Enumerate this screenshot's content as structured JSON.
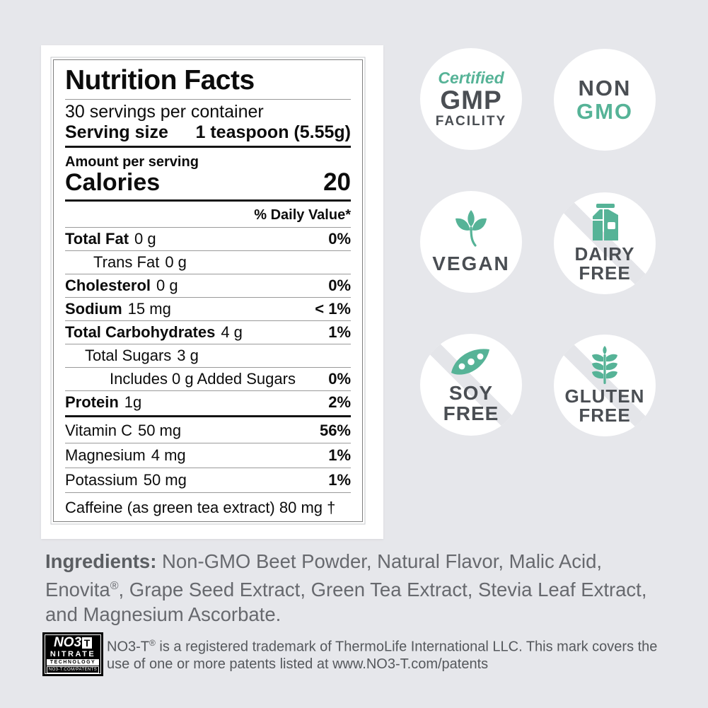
{
  "colors": {
    "background": "#e6e7eb",
    "teal_accent": "#56b397",
    "badge_text_gray": "#4a4e53",
    "body_text_gray": "#67696e",
    "trademark_gray": "#55585c"
  },
  "nutrition": {
    "title": "Nutrition Facts",
    "servings_line": "30 servings per container",
    "serving_size_label": "Serving size",
    "serving_size_value": "1 teaspoon (5.55g)",
    "amount_per_serving": "Amount per serving",
    "calories_label": "Calories",
    "calories_value": "20",
    "daily_value_header": "% Daily Value*",
    "rows": [
      {
        "name": "Total Fat",
        "amount": "0 g",
        "dv": "0%",
        "bold": true,
        "indent": 0
      },
      {
        "name": "Trans Fat",
        "amount": "0 g",
        "dv": "",
        "bold": false,
        "indent": 1
      },
      {
        "name": "Cholesterol",
        "amount": "0 g",
        "dv": "0%",
        "bold": true,
        "indent": 0
      },
      {
        "name": "Sodium",
        "amount": "15 mg",
        "dv": "< 1%",
        "bold": true,
        "indent": 0
      },
      {
        "name": "Total Carbohydrates",
        "amount": "4 g",
        "dv": "1%",
        "bold": true,
        "indent": 0
      },
      {
        "name": "Total Sugars",
        "amount": "3 g",
        "dv": "",
        "bold": false,
        "indent": 2
      },
      {
        "name": "Includes 0 g Added Sugars",
        "amount": "",
        "dv": "0%",
        "bold": false,
        "indent": 3
      },
      {
        "name": "Protein",
        "amount": "1g",
        "dv": "2%",
        "bold": true,
        "indent": 0
      }
    ],
    "micronutrients": [
      {
        "name": "Vitamin C",
        "amount": "50 mg",
        "dv": "56%"
      },
      {
        "name": "Magnesium",
        "amount": "4 mg",
        "dv": "1%"
      },
      {
        "name": "Potassium",
        "amount": "50 mg",
        "dv": "1%"
      }
    ],
    "caffeine_line": "Caffeine (as green tea extract) 80 mg †"
  },
  "badges": {
    "gmp": {
      "top": "Certified",
      "middle": "GMP",
      "bottom": "FACILITY"
    },
    "non_gmo": {
      "top": "NON",
      "bottom": "GMO"
    },
    "vegan": {
      "label": "VEGAN"
    },
    "dairy_free": {
      "line1": "DAIRY",
      "line2": "FREE"
    },
    "soy_free": {
      "line1": "SOY",
      "line2": "FREE"
    },
    "gluten_free": {
      "line1": "GLUTEN",
      "line2": "FREE"
    }
  },
  "ingredients": {
    "label": "Ingredients:",
    "text_before_reg": "Non-GMO Beet Powder, Natural Flavor, Malic Acid, Enovita",
    "reg_symbol": "®",
    "text_after_reg": ", Grape Seed Extract, Green Tea Extract, Stevia Leaf Extract, and Magnesium Ascorbate."
  },
  "trademark": {
    "logo": {
      "no3": "NO3",
      "t": "T",
      "nitrate": "NITRATE",
      "technology": "TECHNOLOGY",
      "patents": "NO3-T.COM/PATENTS"
    },
    "brand": "NO3-T",
    "reg_symbol": "®",
    "text": " is a registered trademark of ThermoLife International LLC. This mark covers the use of one or more patents listed at www.NO3-T.com/patents"
  }
}
